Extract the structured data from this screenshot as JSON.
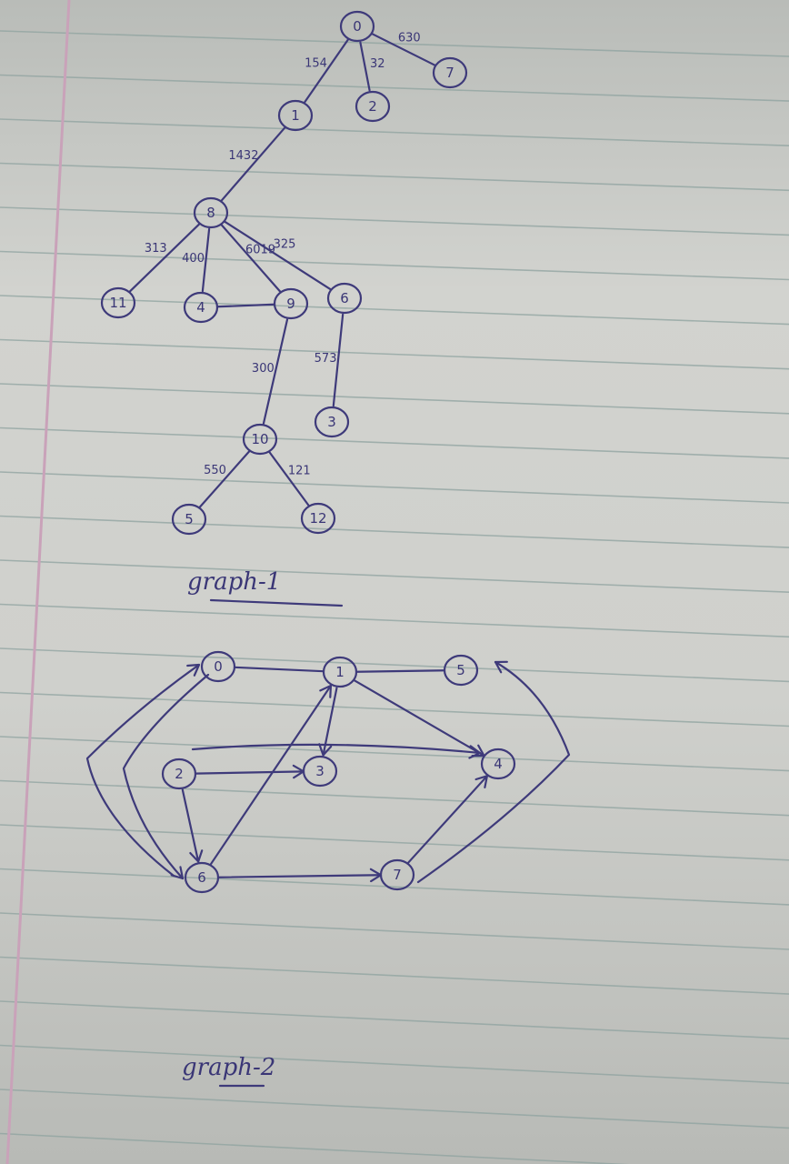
{
  "graph1": {
    "caption": "graph-1",
    "nodes": [
      {
        "id": "r",
        "label": "0"
      },
      {
        "id": "n1",
        "label": "1"
      },
      {
        "id": "n2",
        "label": "2"
      },
      {
        "id": "n7",
        "label": "7"
      },
      {
        "id": "n8",
        "label": "8"
      },
      {
        "id": "n11",
        "label": "11"
      },
      {
        "id": "n4",
        "label": "4"
      },
      {
        "id": "n9",
        "label": "9"
      },
      {
        "id": "n6",
        "label": "6"
      },
      {
        "id": "n3",
        "label": "3"
      },
      {
        "id": "n10",
        "label": "10"
      },
      {
        "id": "n5",
        "label": "5"
      },
      {
        "id": "n12",
        "label": "12"
      }
    ],
    "edges": [
      {
        "from": "r",
        "to": "n7",
        "label": "630"
      },
      {
        "from": "r",
        "to": "n1",
        "label": "154"
      },
      {
        "from": "r",
        "to": "n2",
        "label": "32"
      },
      {
        "from": "n1",
        "to": "n8",
        "label": "1432"
      },
      {
        "from": "n8",
        "to": "n11",
        "label": "313"
      },
      {
        "from": "n8",
        "to": "n4",
        "label": "400"
      },
      {
        "from": "n8",
        "to": "n9",
        "label": "6019"
      },
      {
        "from": "n8",
        "to": "n6",
        "label": "325"
      },
      {
        "from": "n4",
        "to": "n9",
        "label": ""
      },
      {
        "from": "n9",
        "to": "n10",
        "label": "300"
      },
      {
        "from": "n6",
        "to": "n3",
        "label": "573"
      },
      {
        "from": "n10",
        "to": "n5",
        "label": "550"
      },
      {
        "from": "n10",
        "to": "n12",
        "label": "121"
      }
    ]
  },
  "graph2": {
    "caption": "graph-2",
    "nodes": [
      {
        "id": "a0",
        "label": "0"
      },
      {
        "id": "a1",
        "label": "1"
      },
      {
        "id": "a5",
        "label": "5"
      },
      {
        "id": "a2",
        "label": "2"
      },
      {
        "id": "a3",
        "label": "3"
      },
      {
        "id": "a4",
        "label": "4"
      },
      {
        "id": "a6",
        "label": "6"
      },
      {
        "id": "a7",
        "label": "7"
      }
    ],
    "edges": [
      {
        "from": "a0",
        "to": "a1",
        "directed": false
      },
      {
        "from": "a1",
        "to": "a5",
        "directed": false
      },
      {
        "from": "a1",
        "to": "a3",
        "directed": true
      },
      {
        "from": "a1",
        "to": "a4",
        "directed": true
      },
      {
        "from": "a2",
        "to": "a3",
        "directed": true
      },
      {
        "from": "a2",
        "to": "a4",
        "directed": true
      },
      {
        "from": "a2",
        "to": "a6",
        "directed": true
      },
      {
        "from": "a6",
        "to": "a1",
        "directed": true
      },
      {
        "from": "a6",
        "to": "a7",
        "directed": true
      },
      {
        "from": "a7",
        "to": "a4",
        "directed": true
      },
      {
        "from": "a6",
        "to": "a0",
        "directed": true
      },
      {
        "from": "a0",
        "to": "a6",
        "directed": true
      },
      {
        "from": "a7",
        "to": "a5",
        "directed": true
      }
    ]
  }
}
